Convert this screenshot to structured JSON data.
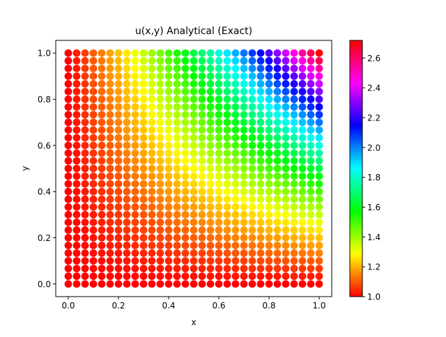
{
  "chart_data": {
    "type": "scatter",
    "title": "u(x,y) Analytical (Exact)",
    "xlabel": "x",
    "ylabel": "y",
    "xlim": [
      -0.05,
      1.05
    ],
    "ylim": [
      -0.055,
      1.055
    ],
    "xticks": [
      0.0,
      0.2,
      0.4,
      0.6,
      0.8,
      1.0
    ],
    "xtick_labels": [
      "0.0",
      "0.2",
      "0.4",
      "0.6",
      "0.8",
      "1.0"
    ],
    "yticks": [
      0.0,
      0.2,
      0.4,
      0.6,
      0.8,
      1.0
    ],
    "ytick_labels": [
      "0.0",
      "0.2",
      "0.4",
      "0.6",
      "0.8",
      "1.0"
    ],
    "grid_x": {
      "start": 0.0,
      "stop": 1.0,
      "count": 31
    },
    "grid_y": {
      "start": 0.0,
      "stop": 1.0,
      "count": 31
    },
    "value_function": "u = exp(x*y)",
    "colormap": "hsv",
    "colorbar": {
      "vmin": 1.0,
      "vmax": 2.718,
      "ticks": [
        1.0,
        1.2,
        1.4,
        1.6,
        1.8,
        2.0,
        2.2,
        2.4,
        2.6
      ],
      "tick_labels": [
        "1.0",
        "1.2",
        "1.4",
        "1.6",
        "1.8",
        "2.0",
        "2.2",
        "2.4",
        "2.6"
      ]
    },
    "grid": false,
    "legend": "none"
  }
}
